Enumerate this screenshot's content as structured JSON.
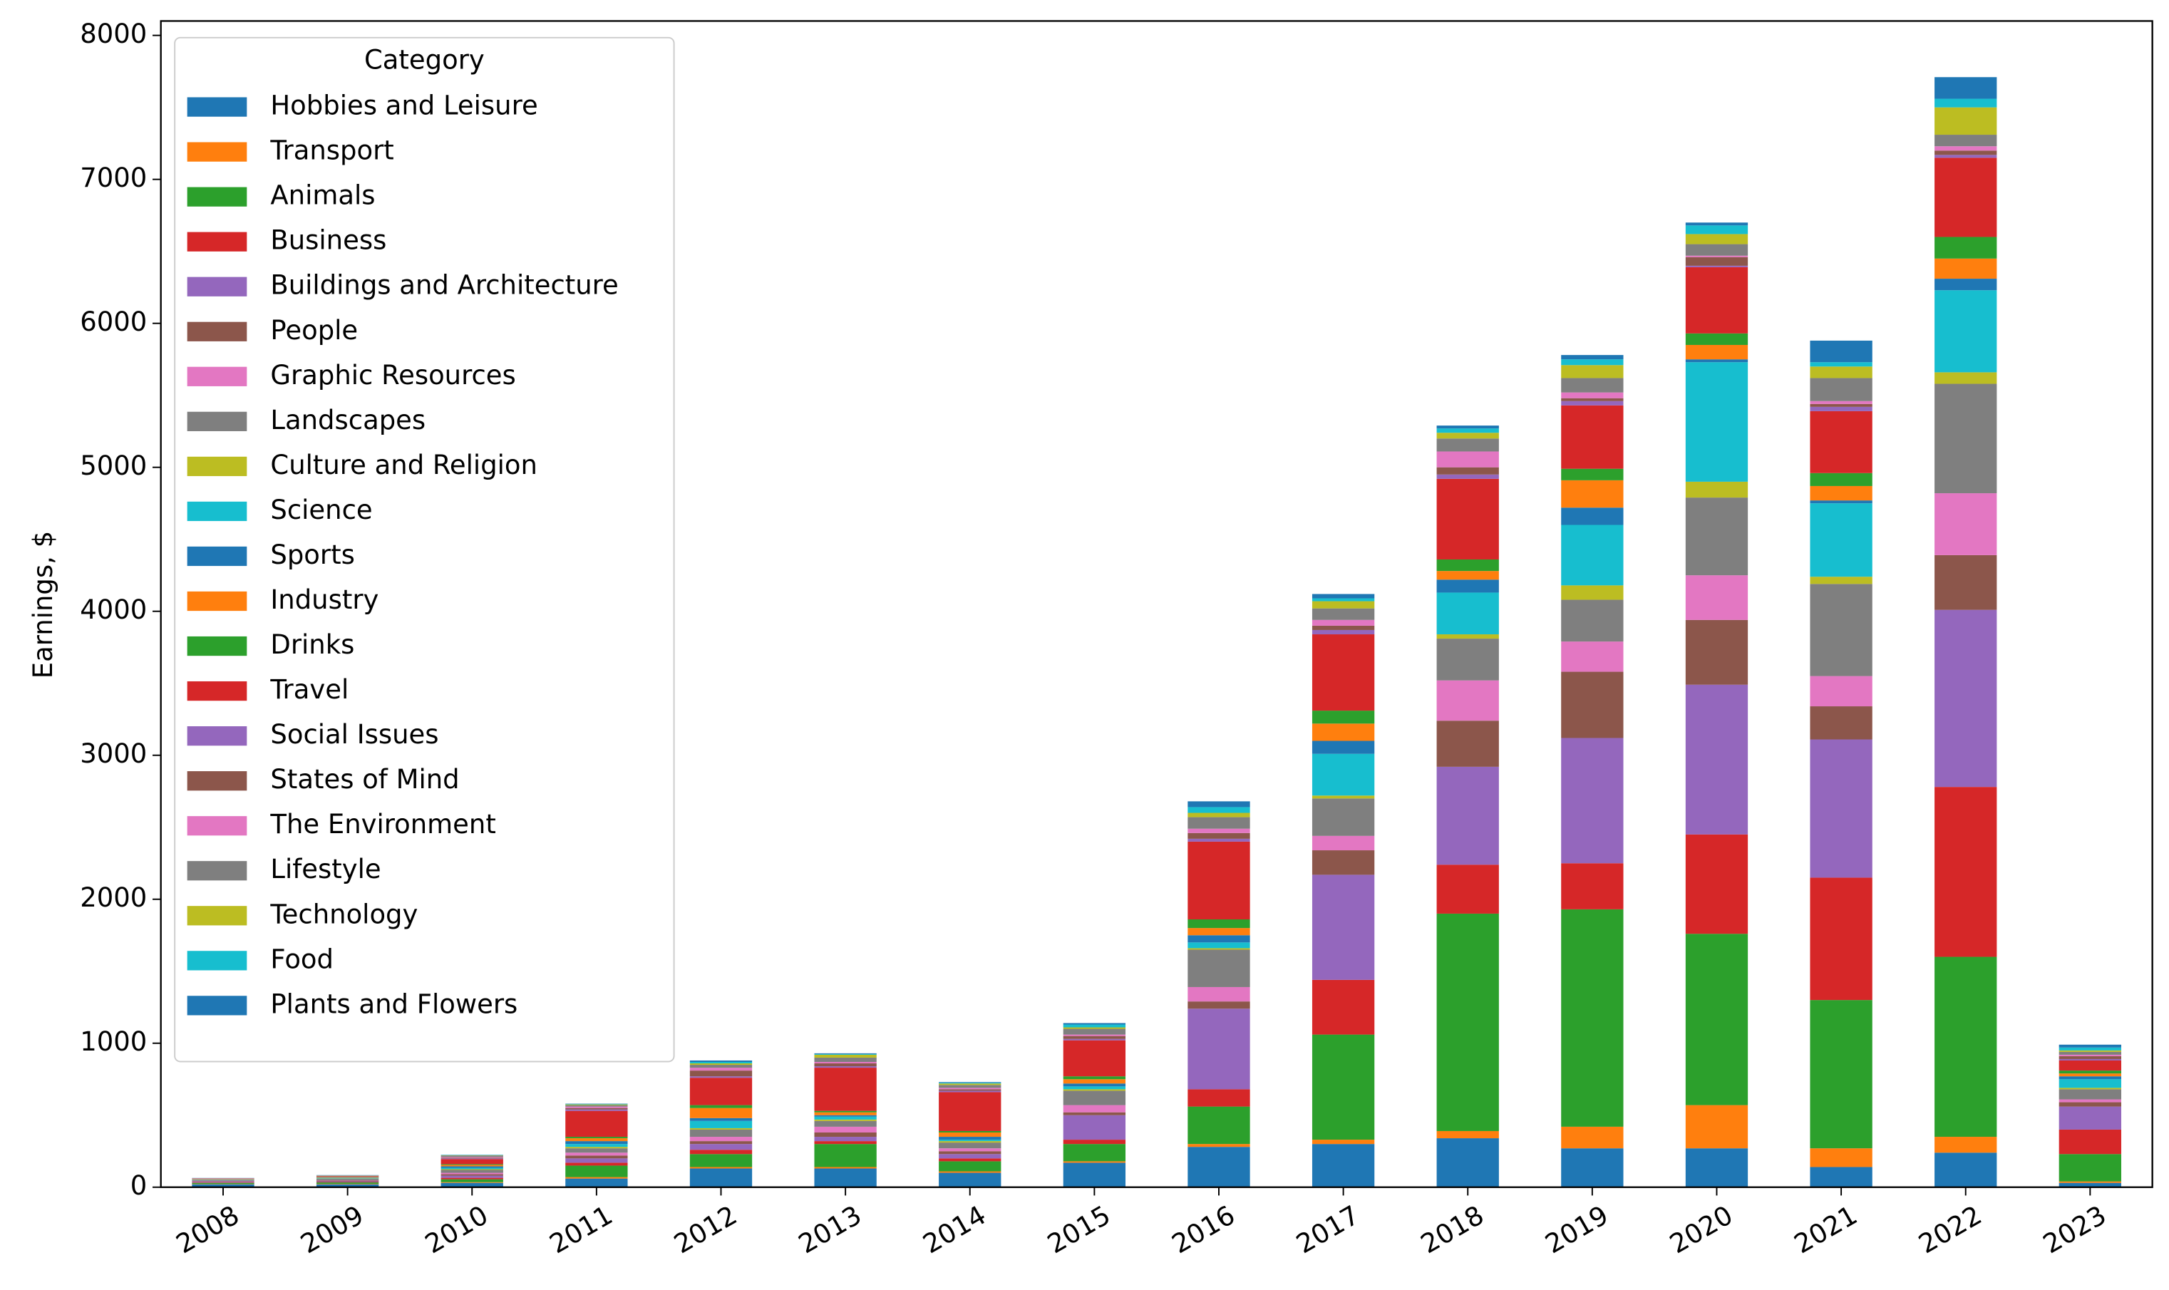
{
  "chart_data": {
    "type": "stacked_bar",
    "y_label": "Earnings, $",
    "legend_title": "Category",
    "legend": "upper left",
    "ylim": [
      0,
      8100
    ],
    "yticks": [
      0,
      1000,
      2000,
      3000,
      4000,
      5000,
      6000,
      7000,
      8000
    ],
    "categories": [
      "2008",
      "2009",
      "2010",
      "2011",
      "2012",
      "2013",
      "2014",
      "2015",
      "2016",
      "2017",
      "2018",
      "2019",
      "2020",
      "2021",
      "2022",
      "2023"
    ],
    "series": [
      {
        "name": "Hobbies and Leisure",
        "color": "#1f77b4",
        "values": [
          20,
          20,
          30,
          60,
          130,
          130,
          100,
          170,
          280,
          300,
          340,
          270,
          270,
          140,
          240,
          30
        ]
      },
      {
        "name": "Transport",
        "color": "#ff7f0e",
        "values": [
          2,
          3,
          5,
          10,
          10,
          10,
          10,
          10,
          20,
          30,
          50,
          150,
          300,
          130,
          110,
          10
        ]
      },
      {
        "name": "Animals",
        "color": "#2ca02c",
        "values": [
          8,
          10,
          20,
          80,
          90,
          160,
          70,
          120,
          260,
          730,
          1510,
          1510,
          1190,
          1030,
          1250,
          190
        ]
      },
      {
        "name": "Business",
        "color": "#d62728",
        "values": [
          3,
          3,
          10,
          20,
          30,
          20,
          20,
          30,
          120,
          380,
          340,
          320,
          690,
          850,
          1180,
          170
        ]
      },
      {
        "name": "Buildings and Architecture",
        "color": "#9467bd",
        "values": [
          5,
          5,
          15,
          30,
          40,
          30,
          30,
          170,
          560,
          730,
          680,
          870,
          1040,
          960,
          1230,
          160
        ]
      },
      {
        "name": "People",
        "color": "#8c564b",
        "values": [
          3,
          5,
          10,
          20,
          20,
          30,
          20,
          20,
          50,
          170,
          320,
          460,
          450,
          230,
          380,
          30
        ]
      },
      {
        "name": "Graphic Resources",
        "color": "#e377c2",
        "values": [
          3,
          3,
          10,
          20,
          30,
          40,
          20,
          50,
          100,
          100,
          280,
          210,
          310,
          210,
          430,
          20
        ]
      },
      {
        "name": "Landscapes",
        "color": "#7f7f7f",
        "values": [
          5,
          10,
          20,
          30,
          50,
          40,
          40,
          100,
          260,
          260,
          290,
          290,
          540,
          640,
          760,
          70
        ]
      },
      {
        "name": "Culture and Religion",
        "color": "#bcbd22",
        "values": [
          1,
          2,
          5,
          10,
          10,
          10,
          10,
          10,
          10,
          20,
          30,
          100,
          110,
          50,
          80,
          10
        ]
      },
      {
        "name": "Science",
        "color": "#17becf",
        "values": [
          2,
          3,
          10,
          20,
          50,
          20,
          10,
          20,
          40,
          290,
          290,
          420,
          830,
          510,
          570,
          60
        ]
      },
      {
        "name": "Sports",
        "color": "#1f77b4",
        "values": [
          2,
          3,
          10,
          20,
          20,
          10,
          20,
          20,
          50,
          90,
          90,
          120,
          20,
          20,
          80,
          20
        ]
      },
      {
        "name": "Industry",
        "color": "#ff7f0e",
        "values": [
          2,
          3,
          10,
          20,
          70,
          20,
          30,
          30,
          50,
          120,
          60,
          190,
          100,
          100,
          140,
          20
        ]
      },
      {
        "name": "Drinks",
        "color": "#2ca02c",
        "values": [
          1,
          2,
          5,
          10,
          20,
          10,
          10,
          20,
          60,
          90,
          80,
          80,
          80,
          90,
          150,
          20
        ]
      },
      {
        "name": "Travel",
        "color": "#d62728",
        "values": [
          2,
          4,
          35,
          180,
          190,
          300,
          270,
          250,
          540,
          530,
          560,
          440,
          460,
          430,
          550,
          70
        ]
      },
      {
        "name": "Social Issues",
        "color": "#9467bd",
        "values": [
          1,
          1,
          5,
          10,
          10,
          10,
          10,
          10,
          20,
          30,
          30,
          30,
          10,
          30,
          20,
          10
        ]
      },
      {
        "name": "States of Mind",
        "color": "#8c564b",
        "values": [
          1,
          1,
          5,
          10,
          40,
          20,
          10,
          20,
          40,
          30,
          50,
          20,
          60,
          20,
          30,
          20
        ]
      },
      {
        "name": "The Environment",
        "color": "#e377c2",
        "values": [
          1,
          1,
          5,
          10,
          20,
          10,
          10,
          10,
          30,
          40,
          110,
          40,
          10,
          20,
          30,
          10
        ]
      },
      {
        "name": "Lifestyle",
        "color": "#7f7f7f",
        "values": [
          1,
          2,
          10,
          10,
          20,
          30,
          20,
          40,
          80,
          80,
          90,
          100,
          80,
          160,
          80,
          20
        ]
      },
      {
        "name": "Technology",
        "color": "#bcbd22",
        "values": [
          0,
          1,
          2,
          5,
          10,
          20,
          10,
          10,
          30,
          50,
          40,
          90,
          70,
          80,
          190,
          10
        ]
      },
      {
        "name": "Food",
        "color": "#17becf",
        "values": [
          0,
          1,
          2,
          3,
          10,
          5,
          5,
          20,
          40,
          20,
          30,
          40,
          60,
          30,
          60,
          20
        ]
      },
      {
        "name": "Plants and Flowers",
        "color": "#1f77b4",
        "values": [
          1,
          1,
          1,
          2,
          10,
          5,
          5,
          10,
          40,
          30,
          20,
          30,
          20,
          150,
          150,
          20
        ]
      }
    ]
  }
}
